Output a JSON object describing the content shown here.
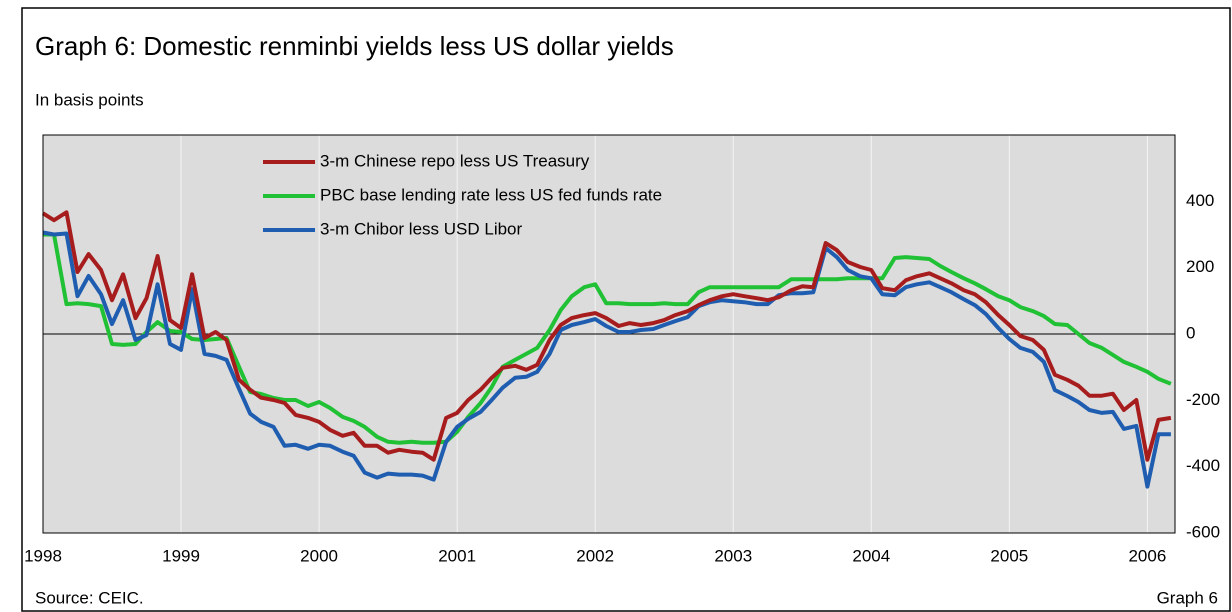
{
  "chart_data": {
    "type": "line",
    "title": "Graph 6: Domestic renminbi yields less US dollar yields",
    "subtitle": "In basis points",
    "source": "Source: CEIC.",
    "footer_label": "Graph 6",
    "x": [
      1998,
      1998.08,
      1998.17,
      1998.25,
      1998.33,
      1998.42,
      1998.5,
      1998.58,
      1998.67,
      1998.75,
      1998.83,
      1998.92,
      1999,
      1999.08,
      1999.17,
      1999.25,
      1999.33,
      1999.42,
      1999.5,
      1999.58,
      1999.67,
      1999.75,
      1999.83,
      1999.92,
      2000,
      2000.08,
      2000.17,
      2000.25,
      2000.33,
      2000.42,
      2000.5,
      2000.58,
      2000.67,
      2000.75,
      2000.83,
      2000.92,
      2001,
      2001.08,
      2001.17,
      2001.25,
      2001.33,
      2001.42,
      2001.5,
      2001.58,
      2001.67,
      2001.75,
      2001.83,
      2001.92,
      2002,
      2002.08,
      2002.17,
      2002.25,
      2002.33,
      2002.42,
      2002.5,
      2002.58,
      2002.67,
      2002.75,
      2002.83,
      2002.92,
      2003,
      2003.08,
      2003.17,
      2003.25,
      2003.33,
      2003.42,
      2003.5,
      2003.58,
      2003.67,
      2003.75,
      2003.83,
      2003.92,
      2004,
      2004.08,
      2004.17,
      2004.25,
      2004.33,
      2004.42,
      2004.5,
      2004.58,
      2004.67,
      2004.75,
      2004.83,
      2004.92,
      2005,
      2005.08,
      2005.17,
      2005.25,
      2005.33,
      2005.42,
      2005.5,
      2005.58,
      2005.67,
      2005.75,
      2005.83,
      2005.92,
      2006,
      2006.08,
      2006.17
    ],
    "series": [
      {
        "name": "3-m Chinese repo less US Treasury",
        "color": "#a71d1d",
        "values": [
          364,
          343,
          367,
          187,
          241,
          193,
          102,
          180,
          48,
          108,
          235,
          42,
          18,
          180,
          -12,
          6,
          -18,
          -138,
          -168,
          -192,
          -199,
          -208,
          -244,
          -253,
          -265,
          -289,
          -307,
          -298,
          -337,
          -337,
          -358,
          -349,
          -355,
          -358,
          -379,
          -253,
          -238,
          -199,
          -168,
          -132,
          -102,
          -96,
          -108,
          -93,
          -18,
          27,
          48,
          57,
          63,
          48,
          24,
          33,
          27,
          33,
          42,
          57,
          69,
          87,
          102,
          114,
          120,
          114,
          108,
          102,
          111,
          132,
          144,
          141,
          274,
          253,
          217,
          202,
          193,
          138,
          132,
          162,
          174,
          183,
          168,
          153,
          132,
          120,
          96,
          57,
          27,
          -6,
          -18,
          -48,
          -123,
          -138,
          -156,
          -186,
          -186,
          -180,
          -229,
          -199,
          -379,
          -259,
          -253
        ]
      },
      {
        "name": "PBC base lending rate less US fed funds rate",
        "color": "#21c135",
        "values": [
          300,
          300,
          90,
          93,
          90,
          84,
          -30,
          -33,
          -30,
          6,
          36,
          9,
          6,
          -15,
          -18,
          -15,
          -12,
          -99,
          -175,
          -181,
          -193,
          -199,
          -199,
          -217,
          -205,
          -223,
          -250,
          -262,
          -280,
          -310,
          -325,
          -328,
          -325,
          -328,
          -328,
          -325,
          -295,
          -250,
          -208,
          -160,
          -99,
          -78,
          -60,
          -42,
          12,
          72,
          114,
          141,
          150,
          93,
          93,
          90,
          90,
          90,
          93,
          90,
          90,
          126,
          141,
          141,
          141,
          141,
          141,
          141,
          141,
          165,
          165,
          165,
          165,
          165,
          168,
          168,
          168,
          168,
          229,
          232,
          229,
          226,
          205,
          187,
          168,
          153,
          135,
          114,
          102,
          81,
          69,
          54,
          30,
          27,
          0,
          -27,
          -42,
          -63,
          -84,
          -99,
          -114,
          -135,
          -150
        ]
      },
      {
        "name": "3-m Chibor less USD Libor",
        "color": "#1f5db0",
        "values": [
          306,
          300,
          303,
          114,
          175,
          120,
          30,
          102,
          -18,
          -3,
          150,
          -30,
          -48,
          135,
          -60,
          -66,
          -78,
          -165,
          -240,
          -265,
          -280,
          -337,
          -334,
          -346,
          -334,
          -337,
          -355,
          -367,
          -418,
          -433,
          -421,
          -424,
          -424,
          -427,
          -439,
          -325,
          -280,
          -256,
          -235,
          -199,
          -162,
          -132,
          -129,
          -114,
          -60,
          12,
          27,
          36,
          45,
          24,
          6,
          6,
          12,
          15,
          27,
          39,
          51,
          84,
          96,
          102,
          99,
          96,
          90,
          90,
          117,
          123,
          123,
          126,
          259,
          232,
          193,
          174,
          168,
          120,
          117,
          141,
          150,
          156,
          141,
          126,
          105,
          87,
          60,
          18,
          -15,
          -42,
          -54,
          -84,
          -169,
          -187,
          -205,
          -229,
          -238,
          -235,
          -286,
          -277,
          -460,
          -302,
          -302
        ]
      }
    ],
    "xlim": [
      1998,
      2006.2
    ],
    "xticks": [
      1998,
      1999,
      2000,
      2001,
      2002,
      2003,
      2004,
      2005,
      2006
    ],
    "ylim": [
      -600,
      600
    ],
    "yticks": [
      -600,
      -400,
      -200,
      0,
      200,
      400
    ],
    "xgrid": true,
    "zero_line": true,
    "legend": "upper left",
    "background": "#dcdcdc"
  }
}
